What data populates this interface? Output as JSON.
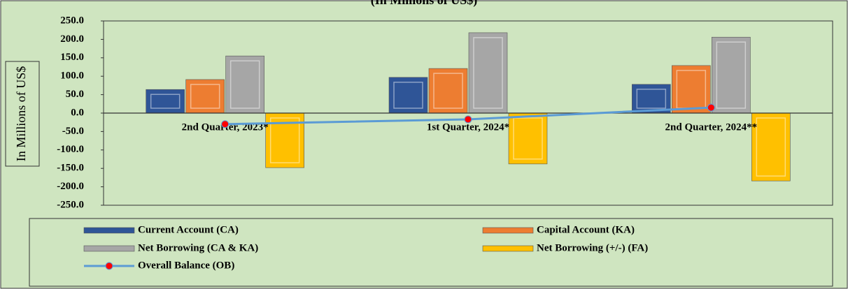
{
  "chart_data": {
    "type": "bar",
    "subtitle": "(In Millions of US$)",
    "y_label": "In Millions of US$",
    "categories": [
      "2nd Quarter, 2023*",
      "1st Quarter, 2024*",
      "2nd Quarter, 2024**"
    ],
    "series": [
      {
        "name": "Current Account (CA)",
        "color": "#2f5597",
        "values": [
          64,
          97,
          78
        ]
      },
      {
        "name": "Capital Account (KA)",
        "color": "#ed7d31",
        "values": [
          91,
          121,
          129
        ]
      },
      {
        "name": "Net Borrowing (CA & KA)",
        "color": "#a6a6a6",
        "values": [
          155,
          218,
          206
        ]
      },
      {
        "name": "Net Borrowing (+/-) (FA)",
        "color": "#ffc000",
        "values": [
          -148,
          -138,
          -184
        ]
      },
      {
        "name": "Overall Balance (OB)",
        "color": "#5b9bd5",
        "type": "line",
        "marker_color": "#ff0000",
        "values": [
          -30,
          -17,
          15
        ]
      }
    ],
    "ylim": [
      -250,
      250
    ],
    "yticks": [
      {
        "value": -250,
        "label": "-250.0"
      },
      {
        "value": -200,
        "label": "-200.0"
      },
      {
        "value": -150,
        "label": "-150.0"
      },
      {
        "value": -100,
        "label": "-100.0"
      },
      {
        "value": -50,
        "label": "-50.0"
      },
      {
        "value": 0,
        "label": "0.0"
      },
      {
        "value": 50,
        "label": "50.0"
      },
      {
        "value": 100,
        "label": "100.0"
      },
      {
        "value": 150,
        "label": "150.0"
      },
      {
        "value": 200,
        "label": "200.0"
      },
      {
        "value": 250,
        "label": "250.0"
      }
    ],
    "legend": "bottom"
  }
}
